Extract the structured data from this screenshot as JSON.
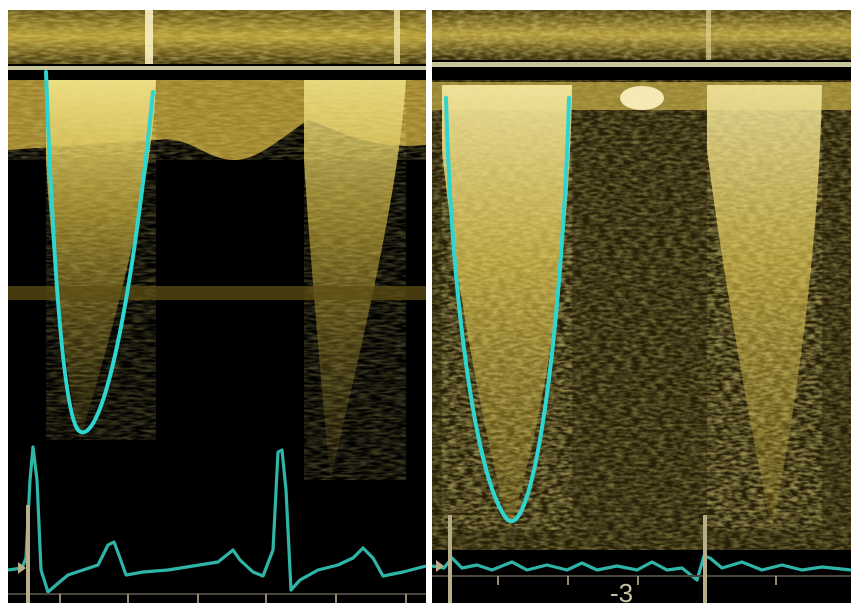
{
  "panels": [
    {
      "name": "left"
    },
    {
      "name": "right",
      "scale_label": "-3"
    }
  ],
  "colors": {
    "background": "#000000",
    "separator": "#ffffff",
    "doppler": "#d8c64a",
    "envelope_trace": "#2fd6d0",
    "ecg_trace": "#2fb4a8",
    "baseline": "#c8c59a",
    "markers": "#b7ad88"
  }
}
